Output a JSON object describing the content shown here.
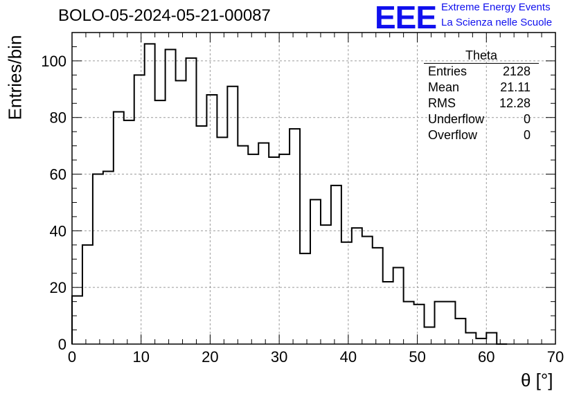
{
  "title": "BOLO-05-2024-05-21-00087",
  "logo": {
    "mark": "EEE",
    "line1": "Extreme Energy Events",
    "line2": "La Scienza nelle Scuole",
    "color": "#1010ee"
  },
  "stats": {
    "title": "Theta",
    "rows": [
      {
        "label": "Entries",
        "value": "2128"
      },
      {
        "label": "Mean",
        "value": "21.11"
      },
      {
        "label": "RMS",
        "value": "12.28"
      },
      {
        "label": "Underflow",
        "value": "0"
      },
      {
        "label": "Overflow",
        "value": "0"
      }
    ]
  },
  "chart_data": {
    "type": "bar",
    "style": "step-histogram",
    "title": "BOLO-05-2024-05-21-00087",
    "xlabel": "θ [°]",
    "ylabel": "Entries/bin",
    "xlim": [
      0,
      70
    ],
    "ylim": [
      0,
      110
    ],
    "bin_width": 1.5,
    "bin_start": 0,
    "values": [
      17,
      35,
      60,
      61,
      82,
      79,
      95,
      106,
      86,
      104,
      93,
      101,
      77,
      88,
      73,
      91,
      70,
      67,
      71,
      66,
      67,
      76,
      32,
      51,
      42,
      56,
      36,
      41,
      38,
      34,
      22,
      27,
      15,
      14,
      6,
      15,
      15,
      9,
      4,
      2,
      4,
      0
    ],
    "xticks": [
      "0",
      "10",
      "20",
      "30",
      "40",
      "50",
      "60",
      "70"
    ],
    "yticks": [
      "0",
      "20",
      "40",
      "60",
      "80",
      "100"
    ],
    "grid": true
  }
}
